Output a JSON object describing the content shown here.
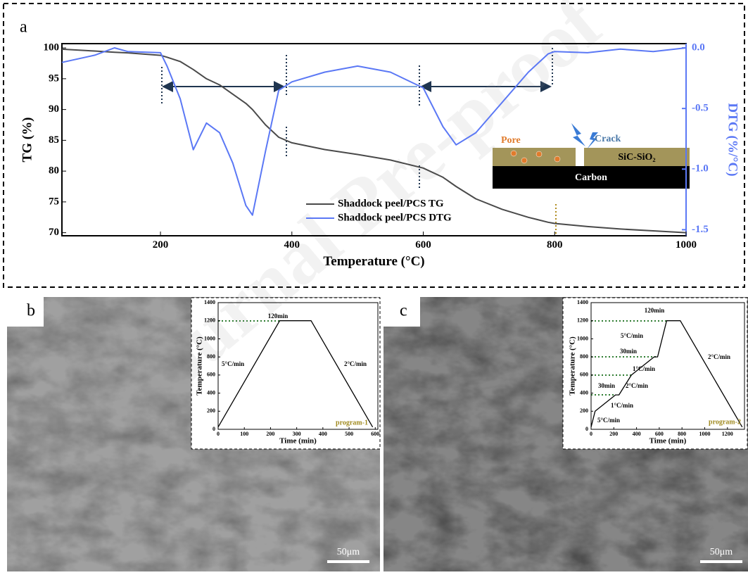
{
  "watermark": "Journal Pre-proof",
  "chart_data": [
    {
      "type": "line",
      "panel_label": "a",
      "x_label": "Temperature (°C)",
      "y_label": "TG (%)",
      "y2_label": "DTG (%/°C)",
      "xlim": [
        50,
        1000
      ],
      "xticks": [
        200,
        400,
        600,
        800,
        1000
      ],
      "ylim": [
        69.5,
        100.7
      ],
      "yticks": [
        70,
        75,
        80,
        85,
        90,
        95,
        100
      ],
      "y2lim": [
        -1.55,
        0.035
      ],
      "y2ticks": [
        {
          "value": 0,
          "label": "0.0"
        },
        -0.5,
        {
          "value": -1,
          "label": "-1.0"
        },
        -1.5
      ],
      "x": [
        50,
        100,
        130,
        150,
        200,
        210,
        230,
        250,
        270,
        290,
        310,
        330,
        340,
        360,
        380,
        400,
        450,
        500,
        550,
        600,
        630,
        650,
        680,
        720,
        760,
        790,
        800,
        850,
        900,
        950,
        1000
      ],
      "series": [
        {
          "name": "Shaddock peel/PCS TG",
          "color": "#4a4a4a",
          "values": [
            99.8,
            99.5,
            99.3,
            99.2,
            98.8,
            98.5,
            97.8,
            96.5,
            95,
            94,
            92.5,
            91,
            90,
            87.5,
            85.5,
            84.6,
            83.5,
            82.7,
            81.8,
            80.5,
            79,
            77.5,
            75.5,
            73.8,
            72.5,
            71.7,
            71.5,
            71,
            70.6,
            70.3,
            70
          ]
        },
        {
          "name": "Shaddock peel/PCS DTG",
          "color": "#5b78f5",
          "axis": "y2",
          "values": [
            -0.12,
            -0.06,
            0,
            -0.03,
            -0.04,
            -0.15,
            -0.42,
            -0.84,
            -0.62,
            -0.7,
            -0.95,
            -1.3,
            -1.38,
            -0.85,
            -0.35,
            -0.28,
            -0.2,
            -0.15,
            -0.2,
            -0.33,
            -0.65,
            -0.8,
            -0.7,
            -0.45,
            -0.2,
            -0.05,
            -0.03,
            -0.04,
            -0.01,
            -0.03,
            0
          ]
        }
      ],
      "inset": {
        "pore": "Pore",
        "crack": "Crack",
        "layer": "SiC-SiO₂",
        "substrate": "Carbon"
      }
    },
    {
      "type": "line",
      "panel_label": "b",
      "scale_bar": "50μm",
      "x_label": "Time (min)",
      "y_label": "Temperature (°C)",
      "xlim": [
        0,
        610
      ],
      "xticks": [
        0,
        100,
        200,
        300,
        400,
        500,
        600
      ],
      "ylim": [
        0,
        1400
      ],
      "yticks": [
        0,
        200,
        400,
        600,
        800,
        1000,
        1200,
        1400
      ],
      "x": [
        0,
        235,
        355,
        590
      ],
      "series": [
        {
          "color": "#000000",
          "values": [
            25,
            1200,
            1200,
            25
          ]
        }
      ],
      "annotations": [
        "120min",
        "5°C/min",
        "2°C/min",
        "program-1"
      ]
    },
    {
      "type": "line",
      "panel_label": "c",
      "scale_bar": "50μm",
      "x_label": "Time (min)",
      "y_label": "Temperature (°C)",
      "xlim": [
        0,
        1350
      ],
      "xticks": [
        0,
        200,
        400,
        600,
        800,
        1000,
        1200
      ],
      "ylim": [
        0,
        1400
      ],
      "yticks": [
        0,
        200,
        400,
        600,
        800,
        1000,
        1200,
        1400
      ],
      "x": [
        0,
        35,
        215,
        245,
        355,
        555,
        585,
        665,
        785,
        1330
      ],
      "series": [
        {
          "color": "#000000",
          "values": [
            25,
            200,
            380,
            380,
            600,
            800,
            800,
            1200,
            1200,
            25
          ]
        }
      ],
      "annotations": [
        "120min",
        "5°C/min",
        "30min",
        "1°C/min",
        "2°C/min",
        "30min",
        "1°C/min",
        "5°C/min",
        "2°C/min",
        "program-2"
      ]
    }
  ]
}
